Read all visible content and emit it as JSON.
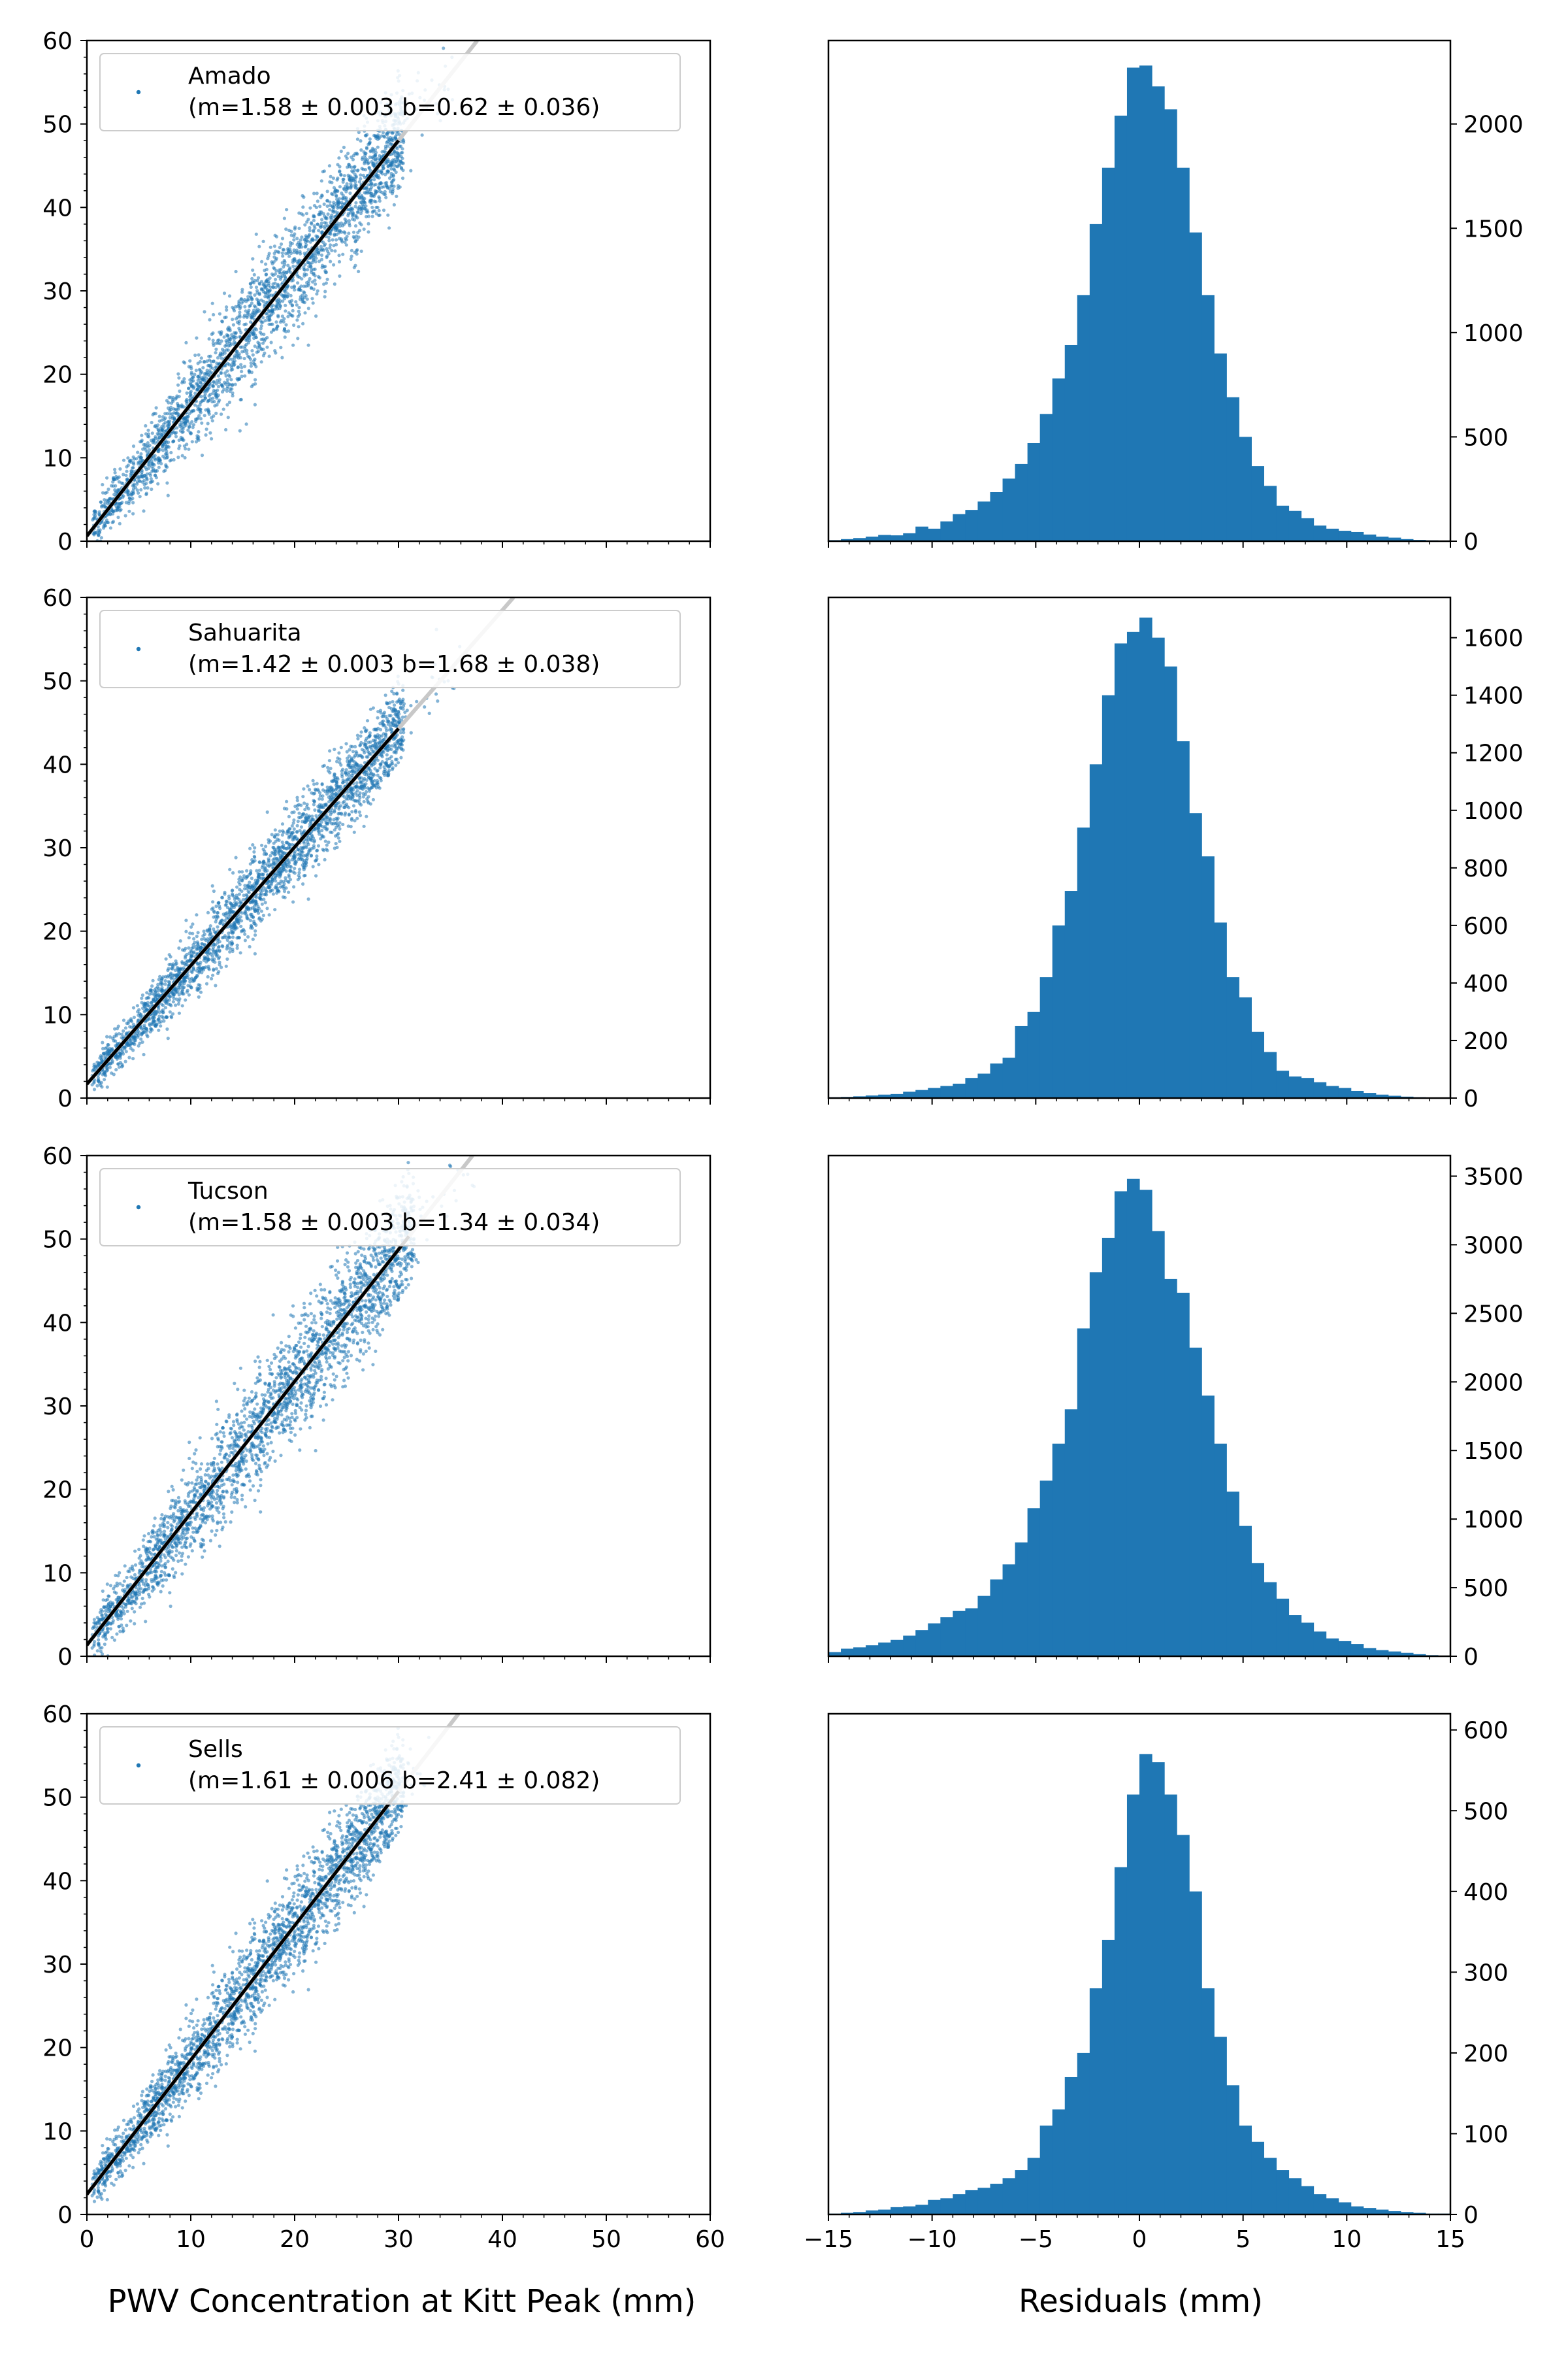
{
  "figure": {
    "xlabel_left": "PWV Concentration at Kitt Peak (mm)",
    "xlabel_right": "Residuals (mm)"
  },
  "colors": {
    "points": "#1f77b4",
    "bars": "#1f77b4",
    "fit_line": "#000000",
    "fit_extension": "#c8c8c8"
  },
  "chart_data": [
    {
      "type": "scatter",
      "site": "Amado",
      "legend": [
        "Amado",
        "(m=1.58 ± 0.003  b=0.62 ± 0.036)"
      ],
      "fit": {
        "m": 1.58,
        "b": 0.62
      },
      "xlim": [
        0,
        60
      ],
      "ylim": [
        0,
        60
      ],
      "xticks": [
        0,
        10,
        20,
        30,
        40,
        50,
        60
      ],
      "yticks": [
        0,
        10,
        20,
        30,
        40,
        50,
        60
      ],
      "cloud": {
        "x_max": 30,
        "scatter_sd": 3.2,
        "outlier_x_max": 36
      }
    },
    {
      "type": "bar",
      "site": "Amado",
      "histogram": "Residuals (mm)",
      "xlim": [
        -15,
        15
      ],
      "yticks": [
        0,
        500,
        1000,
        1500,
        2000
      ],
      "ylim": [
        0,
        2400
      ],
      "bin_width": 0.6,
      "bin_start": -15,
      "values": [
        5,
        10,
        15,
        22,
        30,
        28,
        38,
        70,
        60,
        95,
        130,
        150,
        190,
        235,
        300,
        370,
        470,
        610,
        780,
        940,
        1180,
        1520,
        1790,
        2040,
        2270,
        2280,
        2180,
        2070,
        1790,
        1480,
        1180,
        900,
        690,
        500,
        360,
        265,
        170,
        145,
        110,
        75,
        60,
        50,
        44,
        32,
        22,
        17,
        10,
        6,
        4,
        2
      ]
    },
    {
      "type": "scatter",
      "site": "Sahuarita",
      "legend": [
        "Sahuarita",
        "(m=1.42 ± 0.003  b=1.68 ± 0.038)"
      ],
      "fit": {
        "m": 1.42,
        "b": 1.68
      },
      "xlim": [
        0,
        60
      ],
      "ylim": [
        0,
        60
      ],
      "xticks": [
        0,
        10,
        20,
        30,
        40,
        50,
        60
      ],
      "yticks": [
        0,
        10,
        20,
        30,
        40,
        50,
        60
      ],
      "cloud": {
        "x_max": 30,
        "scatter_sd": 2.4,
        "outlier_x_max": 36
      }
    },
    {
      "type": "bar",
      "site": "Sahuarita",
      "histogram": "Residuals (mm)",
      "xlim": [
        -15,
        15
      ],
      "yticks": [
        0,
        200,
        400,
        600,
        800,
        1000,
        1200,
        1400,
        1600
      ],
      "ylim": [
        0,
        1740
      ],
      "bin_width": 0.6,
      "bin_start": -15,
      "values": [
        3,
        4,
        6,
        9,
        12,
        14,
        22,
        28,
        35,
        42,
        50,
        70,
        85,
        120,
        140,
        250,
        300,
        420,
        600,
        720,
        940,
        1160,
        1400,
        1580,
        1620,
        1670,
        1600,
        1500,
        1240,
        990,
        840,
        610,
        420,
        350,
        230,
        160,
        95,
        75,
        70,
        55,
        42,
        35,
        25,
        18,
        12,
        8,
        5,
        3,
        2,
        1
      ]
    },
    {
      "type": "scatter",
      "site": "Tucson",
      "legend": [
        "Tucson",
        "(m=1.58 ± 0.003  b=1.34 ± 0.034)"
      ],
      "fit": {
        "m": 1.58,
        "b": 1.34
      },
      "xlim": [
        0,
        60
      ],
      "ylim": [
        0,
        60
      ],
      "xticks": [
        0,
        10,
        20,
        30,
        40,
        50,
        60
      ],
      "yticks": [
        0,
        10,
        20,
        30,
        40,
        50,
        60
      ],
      "cloud": {
        "x_max": 31,
        "scatter_sd": 3.4,
        "outlier_x_max": 38
      }
    },
    {
      "type": "bar",
      "site": "Tucson",
      "histogram": "Residuals (mm)",
      "xlim": [
        -15,
        15
      ],
      "yticks": [
        0,
        500,
        1000,
        1500,
        2000,
        2500,
        3000,
        3500
      ],
      "ylim": [
        0,
        3650
      ],
      "bin_width": 0.6,
      "bin_start": -15,
      "values": [
        30,
        55,
        65,
        80,
        100,
        120,
        150,
        190,
        240,
        285,
        330,
        350,
        440,
        560,
        670,
        830,
        1080,
        1280,
        1550,
        1800,
        2390,
        2800,
        3050,
        3390,
        3480,
        3400,
        3100,
        2750,
        2650,
        2250,
        1900,
        1550,
        1200,
        950,
        680,
        540,
        420,
        300,
        245,
        180,
        130,
        110,
        90,
        60,
        45,
        35,
        25,
        15,
        8,
        4
      ]
    },
    {
      "type": "scatter",
      "site": "Sells",
      "legend": [
        "Sells",
        "(m=1.61 ± 0.006  b=2.41 ± 0.082)"
      ],
      "fit": {
        "m": 1.61,
        "b": 2.41
      },
      "xlim": [
        0,
        60
      ],
      "ylim": [
        0,
        60
      ],
      "xticks": [
        0,
        10,
        20,
        30,
        40,
        50,
        60
      ],
      "yticks": [
        0,
        10,
        20,
        30,
        40,
        50,
        60
      ],
      "cloud": {
        "x_max": 30,
        "scatter_sd": 2.9,
        "outlier_x_max": 33
      }
    },
    {
      "type": "bar",
      "site": "Sells",
      "histogram": "Residuals (mm)",
      "xlim": [
        -15,
        15
      ],
      "yticks": [
        0,
        100,
        200,
        300,
        400,
        500,
        600
      ],
      "ylim": [
        0,
        620
      ],
      "bin_width": 0.6,
      "bin_start": -15,
      "values": [
        1,
        2,
        3,
        5,
        6,
        9,
        10,
        12,
        18,
        20,
        25,
        30,
        33,
        38,
        45,
        55,
        70,
        110,
        130,
        170,
        200,
        280,
        340,
        430,
        520,
        570,
        560,
        520,
        470,
        400,
        280,
        220,
        160,
        110,
        90,
        70,
        55,
        45,
        35,
        25,
        20,
        15,
        10,
        8,
        6,
        4,
        3,
        2,
        1,
        1
      ]
    }
  ]
}
